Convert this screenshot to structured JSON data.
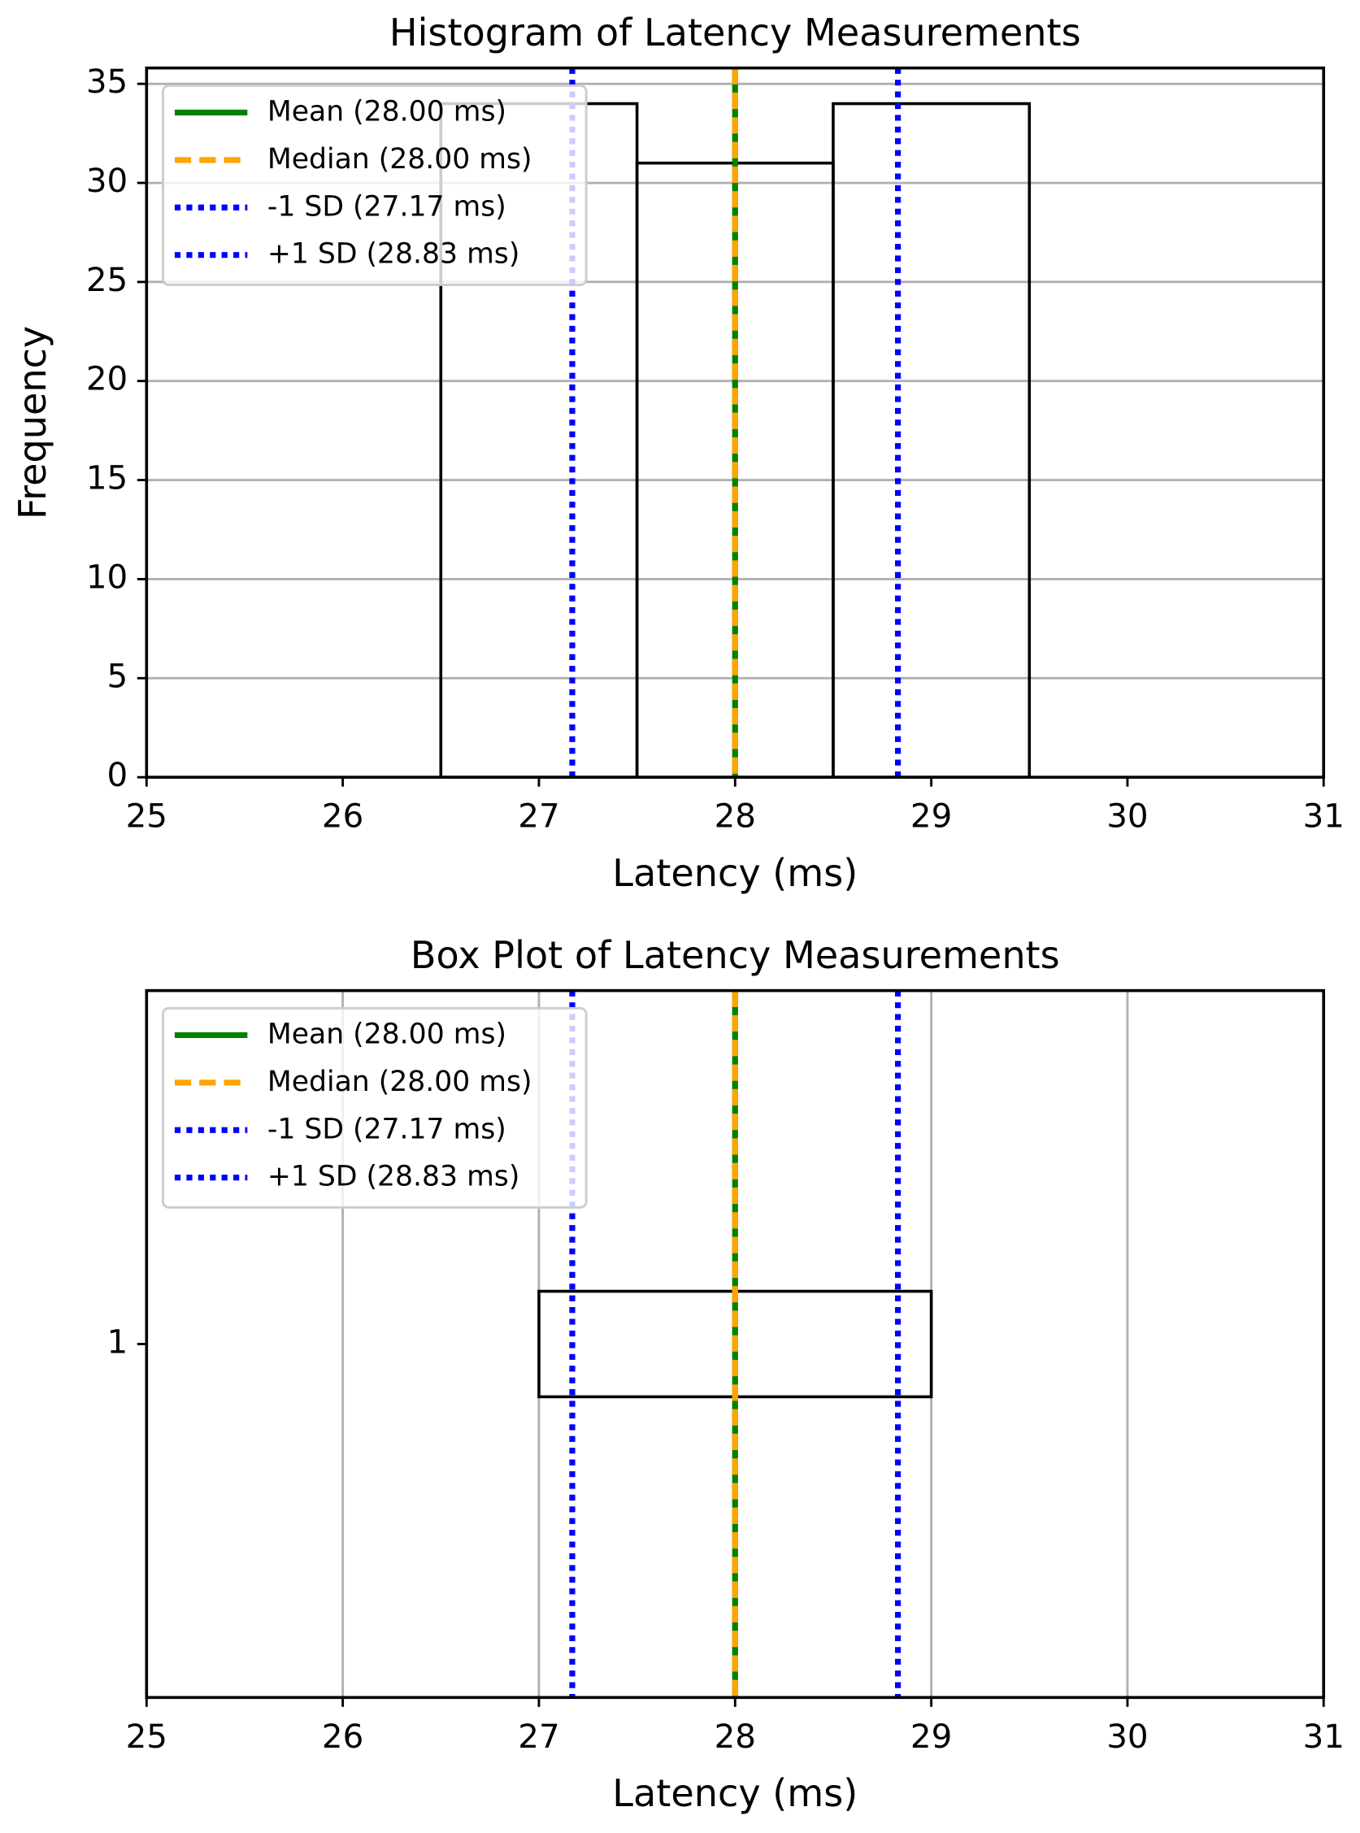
{
  "chart_data": [
    {
      "type": "histogram",
      "title": "Histogram of Latency Measurements",
      "xlabel": "Latency (ms)",
      "ylabel": "Frequency",
      "bins": [
        26.5,
        27.5,
        28.5,
        29.5
      ],
      "counts": [
        34,
        31,
        34
      ],
      "color": "#000000",
      "xlim": [
        25,
        31
      ],
      "xticks": [
        25,
        26,
        27,
        28,
        29,
        30,
        31
      ],
      "ylim": [
        0,
        35.8
      ],
      "yticks": [
        0,
        5,
        10,
        15,
        20,
        25,
        30,
        35
      ],
      "grid": "y",
      "legend": "upper left",
      "lines": [
        {
          "name": "Mean (28.00 ms)",
          "color": "#008000",
          "style": "solid",
          "value": 28
        },
        {
          "name": "Median (28.00 ms)",
          "color": "#ffa500",
          "style": "dashed",
          "value": 28
        },
        {
          "name": "-1 SD (27.17 ms)",
          "color": "#0000ff",
          "style": "dotted",
          "value": 27.17
        },
        {
          "name": "+1 SD (28.83 ms)",
          "color": "#0000ff",
          "style": "dotted",
          "value": 28.83
        }
      ]
    },
    {
      "type": "box",
      "title": "Box Plot of Latency Measurements",
      "xlabel": "Latency (ms)",
      "box": {
        "q1": 27,
        "median": 28,
        "q3": 29
      },
      "color": "#000000",
      "xlim": [
        25,
        31
      ],
      "xticks": [
        25,
        26,
        27,
        28,
        29,
        30,
        31
      ],
      "ylim": [
        0.5,
        1.5
      ],
      "yticks": [
        1
      ],
      "grid": "x",
      "legend": "upper left",
      "lines": [
        {
          "name": "Mean (28.00 ms)",
          "color": "#008000",
          "style": "solid",
          "value": 28
        },
        {
          "name": "Median (28.00 ms)",
          "color": "#ffa500",
          "style": "dashed",
          "value": 28
        },
        {
          "name": "-1 SD (27.17 ms)",
          "color": "#0000ff",
          "style": "dotted",
          "value": 27.17
        },
        {
          "name": "+1 SD (28.83 ms)",
          "color": "#0000ff",
          "style": "dotted",
          "value": 28.83
        }
      ]
    }
  ]
}
